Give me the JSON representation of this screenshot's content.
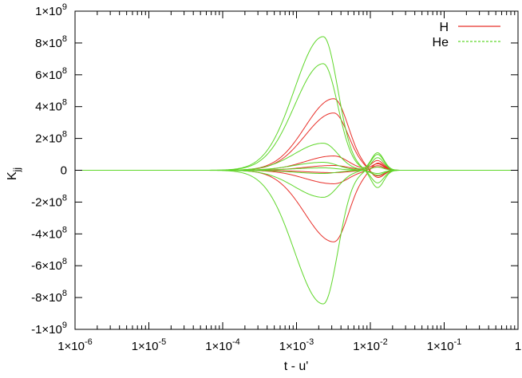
{
  "chart_data": {
    "type": "line",
    "title": "",
    "xlabel": "t - u'",
    "ylabel": "K_jj",
    "xscale": "log",
    "xlim": [
      1e-06,
      1
    ],
    "ylim": [
      -1000000000.0,
      1000000000.0
    ],
    "grid": false,
    "legend": "top-right",
    "x_ticks": [
      {
        "value": 1e-06,
        "base": "1×10",
        "exp": "-6"
      },
      {
        "value": 1e-05,
        "base": "1×10",
        "exp": "-5"
      },
      {
        "value": 0.0001,
        "base": "1×10",
        "exp": "-4"
      },
      {
        "value": 0.001,
        "base": "1×10",
        "exp": "-3"
      },
      {
        "value": 0.01,
        "base": "1×10",
        "exp": "-2"
      },
      {
        "value": 0.1,
        "base": "1×10",
        "exp": "-1"
      },
      {
        "value": 1,
        "base": "1",
        "exp": ""
      }
    ],
    "y_ticks": [
      {
        "value": 1000000000.0,
        "base": "1×10",
        "exp": "9"
      },
      {
        "value": 800000000.0,
        "base": "8×10",
        "exp": "8"
      },
      {
        "value": 600000000.0,
        "base": "6×10",
        "exp": "8"
      },
      {
        "value": 400000000.0,
        "base": "4×10",
        "exp": "8"
      },
      {
        "value": 200000000.0,
        "base": "2×10",
        "exp": "8"
      },
      {
        "value": 0,
        "base": "0",
        "exp": ""
      },
      {
        "value": -200000000.0,
        "base": "-2×10",
        "exp": "8"
      },
      {
        "value": -400000000.0,
        "base": "-4×10",
        "exp": "8"
      },
      {
        "value": -600000000.0,
        "base": "-6×10",
        "exp": "8"
      },
      {
        "value": -800000000.0,
        "base": "-8×10",
        "exp": "8"
      },
      {
        "value": -1000000000.0,
        "base": "-1×10",
        "exp": "9"
      }
    ],
    "series": [
      {
        "name": "H",
        "color": "#e8302a",
        "dash": "solid",
        "curves": [
          {
            "peak": 450000000.0,
            "peak_x": 0.0032,
            "lobe": -50000000.0
          },
          {
            "peak": 360000000.0,
            "peak_x": 0.0032,
            "lobe": -40000000.0
          },
          {
            "peak": 90000000.0,
            "peak_x": 0.0032,
            "lobe": 60000000.0
          },
          {
            "peak": 30000000.0,
            "peak_x": 0.0032,
            "lobe": 40000000.0
          },
          {
            "peak": -15000000.0,
            "peak_x": 0.0032,
            "lobe": 20000000.0
          },
          {
            "peak": -85000000.0,
            "peak_x": 0.0032,
            "lobe": 30000000.0
          },
          {
            "peak": -450000000.0,
            "peak_x": 0.0032,
            "lobe": 50000000.0
          }
        ]
      },
      {
        "name": "He",
        "color": "#5fd72a",
        "dash": "dashed",
        "curves": [
          {
            "peak": 840000000.0,
            "peak_x": 0.0023,
            "lobe": -110000000.0
          },
          {
            "peak": 670000000.0,
            "peak_x": 0.0023,
            "lobe": -80000000.0
          },
          {
            "peak": 170000000.0,
            "peak_x": 0.0023,
            "lobe": 110000000.0
          },
          {
            "peak": 50000000.0,
            "peak_x": 0.0023,
            "lobe": -30000000.0
          },
          {
            "peak": 15000000.0,
            "peak_x": 0.0023,
            "lobe": 20000000.0
          },
          {
            "peak": -20000000.0,
            "peak_x": 0.0023,
            "lobe": -20000000.0
          },
          {
            "peak": -170000000.0,
            "peak_x": 0.0023,
            "lobe": 100000000.0
          },
          {
            "peak": -840000000.0,
            "peak_x": 0.0023,
            "lobe": 80000000.0
          }
        ]
      }
    ]
  }
}
